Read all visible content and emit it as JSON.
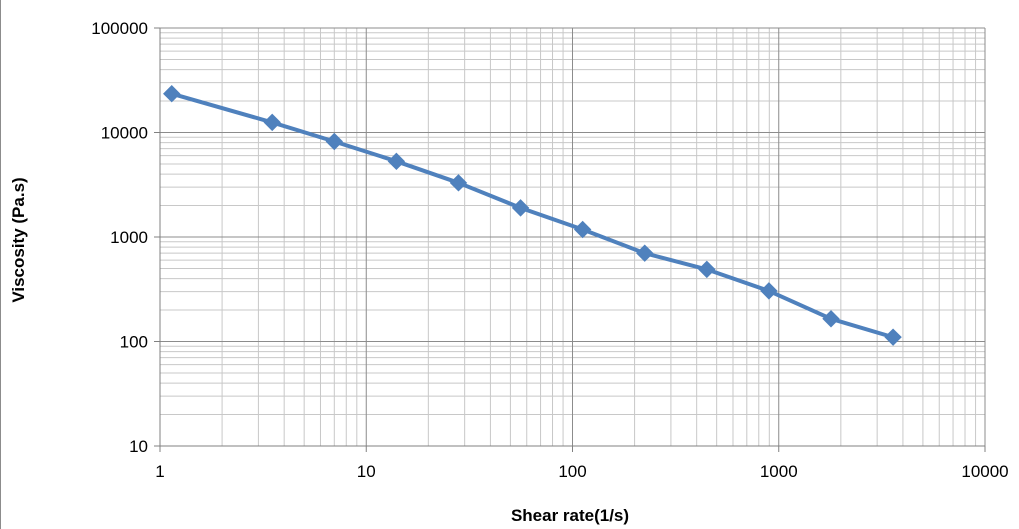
{
  "chart_data": {
    "type": "line",
    "title": "",
    "xlabel": "Shear rate(1/s)",
    "ylabel": "Viscosity (Pa.s)",
    "x_scale": "log",
    "y_scale": "log",
    "xlim": [
      1,
      10000
    ],
    "ylim": [
      10,
      100000
    ],
    "x_ticks": [
      "1",
      "10",
      "100",
      "1000",
      "10000"
    ],
    "y_ticks": [
      "10",
      "100",
      "1000",
      "10000",
      "100000"
    ],
    "grid": true,
    "legend": "none",
    "series": [
      {
        "color": "#4f81bd",
        "marker": "diamond",
        "points": [
          {
            "x": 1.14,
            "y": 23500
          },
          {
            "x": 3.5,
            "y": 12500
          },
          {
            "x": 7,
            "y": 8200
          },
          {
            "x": 14,
            "y": 5300
          },
          {
            "x": 28,
            "y": 3300
          },
          {
            "x": 56,
            "y": 1900
          },
          {
            "x": 112,
            "y": 1180
          },
          {
            "x": 224,
            "y": 700
          },
          {
            "x": 448,
            "y": 490
          },
          {
            "x": 896,
            "y": 305
          },
          {
            "x": 1792,
            "y": 165
          },
          {
            "x": 3584,
            "y": 110
          }
        ]
      }
    ]
  }
}
